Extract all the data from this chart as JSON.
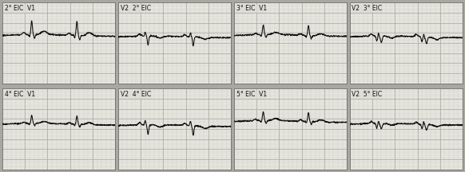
{
  "bg_color": "#e8e8e0",
  "grid_minor_color": "#c8c8c0",
  "grid_major_color": "#a8a8a0",
  "border_color": "#666666",
  "ecg_color": "#111111",
  "outer_bg": "#a8a8a0",
  "label_bg": "#ddddd5",
  "font_size": 5.5,
  "ecg_lw": 0.8,
  "panels": [
    {
      "row": 0,
      "col": 0,
      "label1": "2° EIC",
      "label2": "V1",
      "style": "r0c0"
    },
    {
      "row": 0,
      "col": 1,
      "label1": "V2",
      "label2": "2° EIC",
      "style": "r0c1"
    },
    {
      "row": 0,
      "col": 2,
      "label1": "3° EIC",
      "label2": "V1",
      "style": "r0c2"
    },
    {
      "row": 0,
      "col": 3,
      "label1": "V2",
      "label2": "3° EIC",
      "style": "r0c3"
    },
    {
      "row": 1,
      "col": 0,
      "label1": "4° EIC",
      "label2": "V1",
      "style": "r1c0"
    },
    {
      "row": 1,
      "col": 1,
      "label1": "V2",
      "label2": "4° EIC",
      "style": "r1c1"
    },
    {
      "row": 1,
      "col": 2,
      "label1": "5° EIC",
      "label2": "V1",
      "style": "r1c2"
    },
    {
      "row": 1,
      "col": 3,
      "label1": "V2",
      "label2": "5° EIC",
      "style": "r1c3"
    }
  ]
}
